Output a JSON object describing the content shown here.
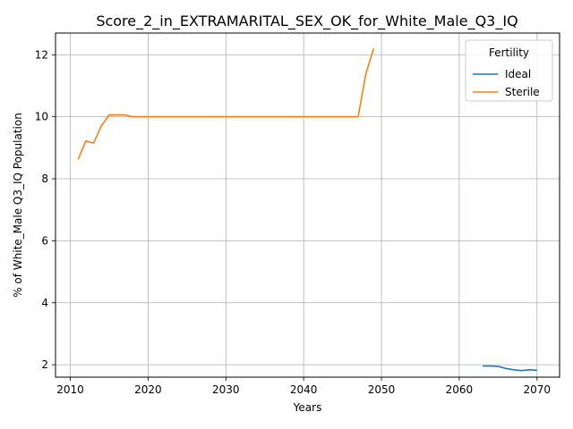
{
  "chart_data": {
    "type": "line",
    "title": "Score_2_in_EXTRAMARITAL_SEX_OK_for_White_Male_Q3_IQ",
    "xlabel": "Years",
    "ylabel": "% of White_Male Q3_IQ Population",
    "xlim": [
      2008.1,
      2072.9
    ],
    "ylim": [
      1.6,
      12.7
    ],
    "x_ticks": [
      2010,
      2020,
      2030,
      2040,
      2050,
      2060,
      2070
    ],
    "y_ticks": [
      2,
      4,
      6,
      8,
      10,
      12
    ],
    "grid": true,
    "legend": {
      "title": "Fertility",
      "placement": "top-right",
      "entries": [
        "Ideal",
        "Sterile"
      ]
    },
    "series": [
      {
        "name": "Ideal",
        "color": "#1f77b4",
        "x": [
          2063,
          2064,
          2065,
          2066,
          2067,
          2068,
          2069,
          2070
        ],
        "values": [
          1.96,
          1.96,
          1.95,
          1.88,
          1.84,
          1.81,
          1.84,
          1.82
        ]
      },
      {
        "name": "Sterile",
        "color": "#ff7f0e",
        "x": [
          2011,
          2012,
          2013,
          2014,
          2015,
          2016,
          2017,
          2018,
          2019,
          2020,
          2021,
          2022,
          2023,
          2024,
          2025,
          2026,
          2027,
          2028,
          2029,
          2030,
          2031,
          2032,
          2033,
          2034,
          2035,
          2036,
          2037,
          2038,
          2039,
          2040,
          2041,
          2042,
          2043,
          2044,
          2045,
          2046,
          2047,
          2048,
          2049
        ],
        "values": [
          8.62,
          9.22,
          9.15,
          9.71,
          10.06,
          10.06,
          10.06,
          10.0,
          10.0,
          10.0,
          10.0,
          10.0,
          10.0,
          10.0,
          10.0,
          10.0,
          10.0,
          10.0,
          10.0,
          10.0,
          10.0,
          10.0,
          10.0,
          10.0,
          10.0,
          10.0,
          10.0,
          10.0,
          10.0,
          10.0,
          10.0,
          10.0,
          10.0,
          10.0,
          10.0,
          10.0,
          10.0,
          11.4,
          12.2
        ]
      }
    ]
  }
}
